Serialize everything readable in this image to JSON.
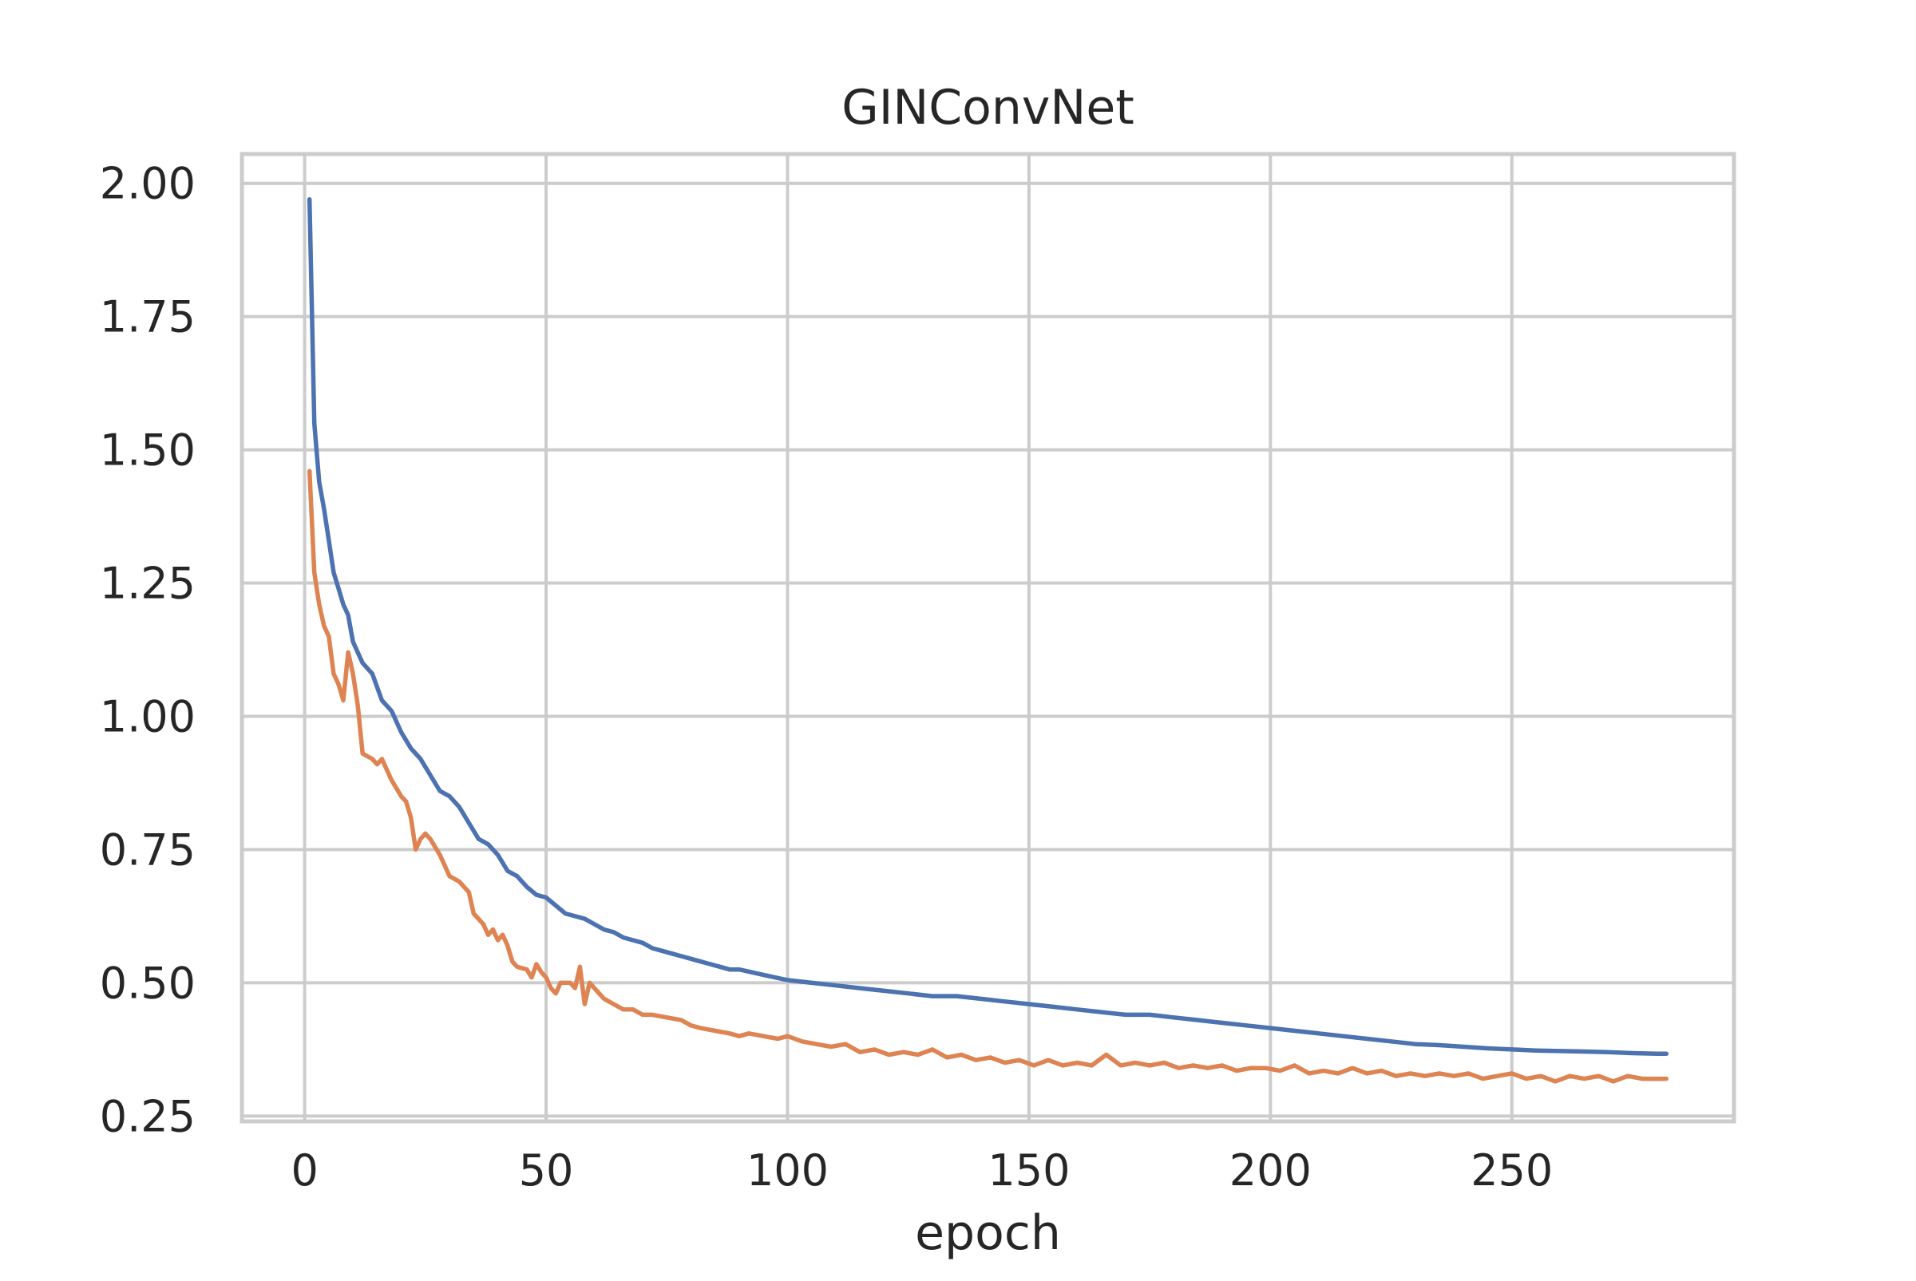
{
  "chart_data": {
    "type": "line",
    "title": "GINConvNet",
    "xlabel": "epoch",
    "ylabel": "",
    "xlim": [
      -13,
      296
    ],
    "ylim": [
      0.24,
      2.055
    ],
    "xticks": [
      0,
      50,
      100,
      150,
      200,
      250
    ],
    "yticks": [
      0.25,
      0.5,
      0.75,
      1.0,
      1.25,
      1.5,
      1.75,
      2.0
    ],
    "xtick_labels": [
      "0",
      "50",
      "100",
      "150",
      "200",
      "250"
    ],
    "ytick_labels": [
      "0.25",
      "0.50",
      "0.75",
      "1.00",
      "1.25",
      "1.50",
      "1.75",
      "2.00"
    ],
    "grid": true,
    "legend": "none",
    "series": [
      {
        "color": "#4c72b0",
        "points": [
          [
            1,
            1.97
          ],
          [
            2,
            1.55
          ],
          [
            3,
            1.44
          ],
          [
            4,
            1.39
          ],
          [
            5,
            1.33
          ],
          [
            6,
            1.27
          ],
          [
            7,
            1.24
          ],
          [
            8,
            1.21
          ],
          [
            9,
            1.19
          ],
          [
            10,
            1.14
          ],
          [
            12,
            1.1
          ],
          [
            14,
            1.08
          ],
          [
            16,
            1.03
          ],
          [
            18,
            1.01
          ],
          [
            20,
            0.97
          ],
          [
            22,
            0.94
          ],
          [
            24,
            0.92
          ],
          [
            26,
            0.89
          ],
          [
            28,
            0.86
          ],
          [
            30,
            0.85
          ],
          [
            32,
            0.83
          ],
          [
            34,
            0.8
          ],
          [
            36,
            0.77
          ],
          [
            38,
            0.76
          ],
          [
            40,
            0.74
          ],
          [
            42,
            0.71
          ],
          [
            44,
            0.7
          ],
          [
            46,
            0.68
          ],
          [
            48,
            0.665
          ],
          [
            50,
            0.66
          ],
          [
            52,
            0.645
          ],
          [
            54,
            0.63
          ],
          [
            56,
            0.625
          ],
          [
            58,
            0.62
          ],
          [
            60,
            0.61
          ],
          [
            62,
            0.6
          ],
          [
            64,
            0.595
          ],
          [
            66,
            0.585
          ],
          [
            68,
            0.58
          ],
          [
            70,
            0.575
          ],
          [
            72,
            0.565
          ],
          [
            74,
            0.56
          ],
          [
            76,
            0.555
          ],
          [
            78,
            0.55
          ],
          [
            80,
            0.545
          ],
          [
            82,
            0.54
          ],
          [
            84,
            0.535
          ],
          [
            86,
            0.53
          ],
          [
            88,
            0.525
          ],
          [
            90,
            0.525
          ],
          [
            95,
            0.515
          ],
          [
            100,
            0.505
          ],
          [
            105,
            0.5
          ],
          [
            110,
            0.495
          ],
          [
            115,
            0.49
          ],
          [
            120,
            0.485
          ],
          [
            125,
            0.48
          ],
          [
            130,
            0.475
          ],
          [
            135,
            0.475
          ],
          [
            140,
            0.47
          ],
          [
            145,
            0.465
          ],
          [
            150,
            0.46
          ],
          [
            155,
            0.455
          ],
          [
            160,
            0.45
          ],
          [
            165,
            0.445
          ],
          [
            170,
            0.44
          ],
          [
            175,
            0.44
          ],
          [
            180,
            0.435
          ],
          [
            185,
            0.43
          ],
          [
            190,
            0.425
          ],
          [
            195,
            0.42
          ],
          [
            200,
            0.415
          ],
          [
            205,
            0.41
          ],
          [
            210,
            0.405
          ],
          [
            215,
            0.4
          ],
          [
            220,
            0.395
          ],
          [
            225,
            0.39
          ],
          [
            230,
            0.385
          ],
          [
            235,
            0.383
          ],
          [
            240,
            0.38
          ],
          [
            245,
            0.377
          ],
          [
            250,
            0.375
          ],
          [
            255,
            0.373
          ],
          [
            260,
            0.372
          ],
          [
            265,
            0.371
          ],
          [
            270,
            0.37
          ],
          [
            275,
            0.368
          ],
          [
            280,
            0.367
          ],
          [
            282,
            0.367
          ]
        ]
      },
      {
        "color": "#dd8452",
        "points": [
          [
            1,
            1.46
          ],
          [
            2,
            1.27
          ],
          [
            3,
            1.21
          ],
          [
            4,
            1.17
          ],
          [
            5,
            1.15
          ],
          [
            6,
            1.08
          ],
          [
            7,
            1.06
          ],
          [
            8,
            1.03
          ],
          [
            9,
            1.12
          ],
          [
            10,
            1.08
          ],
          [
            11,
            1.02
          ],
          [
            12,
            0.93
          ],
          [
            13,
            0.925
          ],
          [
            14,
            0.92
          ],
          [
            15,
            0.91
          ],
          [
            16,
            0.92
          ],
          [
            18,
            0.88
          ],
          [
            20,
            0.85
          ],
          [
            21,
            0.84
          ],
          [
            22,
            0.81
          ],
          [
            23,
            0.75
          ],
          [
            24,
            0.77
          ],
          [
            25,
            0.78
          ],
          [
            26,
            0.77
          ],
          [
            28,
            0.74
          ],
          [
            30,
            0.7
          ],
          [
            32,
            0.69
          ],
          [
            33,
            0.68
          ],
          [
            34,
            0.67
          ],
          [
            35,
            0.63
          ],
          [
            37,
            0.61
          ],
          [
            38,
            0.59
          ],
          [
            39,
            0.6
          ],
          [
            40,
            0.58
          ],
          [
            41,
            0.59
          ],
          [
            42,
            0.57
          ],
          [
            43,
            0.54
          ],
          [
            44,
            0.53
          ],
          [
            46,
            0.525
          ],
          [
            47,
            0.51
          ],
          [
            48,
            0.535
          ],
          [
            49,
            0.52
          ],
          [
            50,
            0.51
          ],
          [
            51,
            0.49
          ],
          [
            52,
            0.48
          ],
          [
            53,
            0.5
          ],
          [
            55,
            0.5
          ],
          [
            56,
            0.49
          ],
          [
            57,
            0.53
          ],
          [
            58,
            0.46
          ],
          [
            59,
            0.5
          ],
          [
            60,
            0.49
          ],
          [
            62,
            0.47
          ],
          [
            64,
            0.46
          ],
          [
            66,
            0.45
          ],
          [
            68,
            0.45
          ],
          [
            70,
            0.44
          ],
          [
            72,
            0.44
          ],
          [
            75,
            0.435
          ],
          [
            78,
            0.43
          ],
          [
            80,
            0.42
          ],
          [
            82,
            0.415
          ],
          [
            85,
            0.41
          ],
          [
            88,
            0.405
          ],
          [
            90,
            0.4
          ],
          [
            92,
            0.405
          ],
          [
            95,
            0.4
          ],
          [
            98,
            0.395
          ],
          [
            100,
            0.4
          ],
          [
            103,
            0.39
          ],
          [
            106,
            0.385
          ],
          [
            109,
            0.38
          ],
          [
            112,
            0.385
          ],
          [
            115,
            0.37
          ],
          [
            118,
            0.375
          ],
          [
            121,
            0.365
          ],
          [
            124,
            0.37
          ],
          [
            127,
            0.365
          ],
          [
            130,
            0.375
          ],
          [
            133,
            0.36
          ],
          [
            136,
            0.365
          ],
          [
            139,
            0.355
          ],
          [
            142,
            0.36
          ],
          [
            145,
            0.35
          ],
          [
            148,
            0.355
          ],
          [
            151,
            0.345
          ],
          [
            154,
            0.355
          ],
          [
            157,
            0.345
          ],
          [
            160,
            0.35
          ],
          [
            163,
            0.345
          ],
          [
            166,
            0.365
          ],
          [
            169,
            0.345
          ],
          [
            172,
            0.35
          ],
          [
            175,
            0.345
          ],
          [
            178,
            0.35
          ],
          [
            181,
            0.34
          ],
          [
            184,
            0.345
          ],
          [
            187,
            0.34
          ],
          [
            190,
            0.345
          ],
          [
            193,
            0.335
          ],
          [
            196,
            0.34
          ],
          [
            199,
            0.34
          ],
          [
            202,
            0.335
          ],
          [
            205,
            0.345
          ],
          [
            208,
            0.33
          ],
          [
            211,
            0.335
          ],
          [
            214,
            0.33
          ],
          [
            217,
            0.34
          ],
          [
            220,
            0.33
          ],
          [
            223,
            0.335
          ],
          [
            226,
            0.325
          ],
          [
            229,
            0.33
          ],
          [
            232,
            0.325
          ],
          [
            235,
            0.33
          ],
          [
            238,
            0.325
          ],
          [
            241,
            0.33
          ],
          [
            244,
            0.32
          ],
          [
            247,
            0.325
          ],
          [
            250,
            0.33
          ],
          [
            253,
            0.32
          ],
          [
            256,
            0.325
          ],
          [
            259,
            0.315
          ],
          [
            262,
            0.325
          ],
          [
            265,
            0.32
          ],
          [
            268,
            0.325
          ],
          [
            271,
            0.315
          ],
          [
            274,
            0.325
          ],
          [
            277,
            0.32
          ],
          [
            280,
            0.32
          ],
          [
            282,
            0.32
          ]
        ]
      }
    ]
  }
}
